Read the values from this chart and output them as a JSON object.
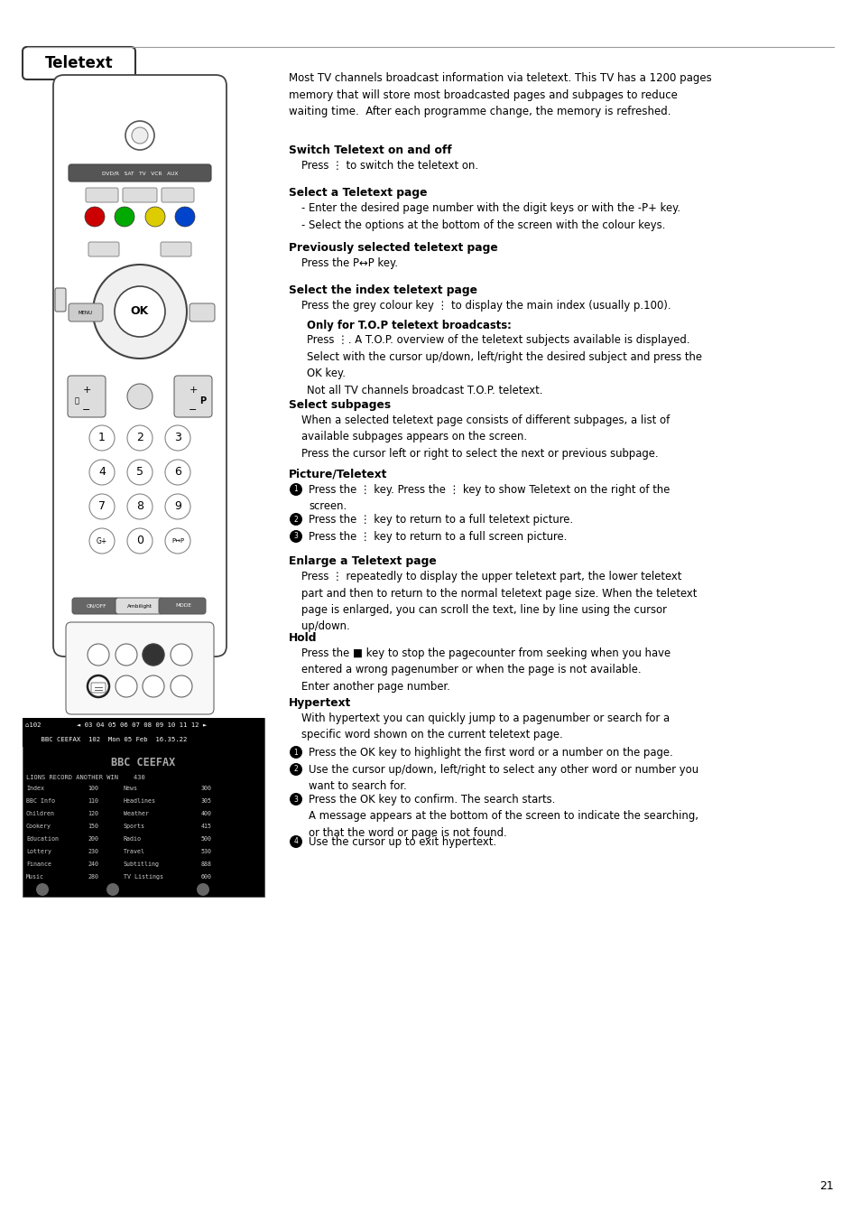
{
  "page_num": "21",
  "section_title": "Teletext",
  "bg_color": "#ffffff",
  "intro_text": "Most TV channels broadcast information via teletext. This TV has a 1200 pages\nmemory that will store most broadcasted pages and subpages to reduce\nwaiting time.  After each programme change, the memory is refreshed.",
  "teletext_screen": {
    "header_text": "⌂102         ◄ 03 04 05 06 07 08 09 10 11 12 ►",
    "header_sub": "    BBC CEEFAX  102  Mon 05 Feb  16.35.22",
    "title": "BBC CEEFAX",
    "headline": "LIONS RECORD ANOTHER WIN    430",
    "items_left": [
      "Index",
      "BBC Info",
      "Children",
      "Cookery",
      "Education",
      "Lottery",
      "Finance",
      "Music"
    ],
    "nums_left": [
      "100",
      "110",
      "120",
      "150",
      "200",
      "230",
      "240",
      "280"
    ],
    "items_right": [
      "News",
      "Headlines",
      "Weather",
      "Sports",
      "Radio",
      "Travel",
      "Subtitling",
      "TV Listings"
    ],
    "nums_right": [
      "300",
      "305",
      "400",
      "415",
      "500",
      "530",
      "888",
      "600"
    ]
  }
}
